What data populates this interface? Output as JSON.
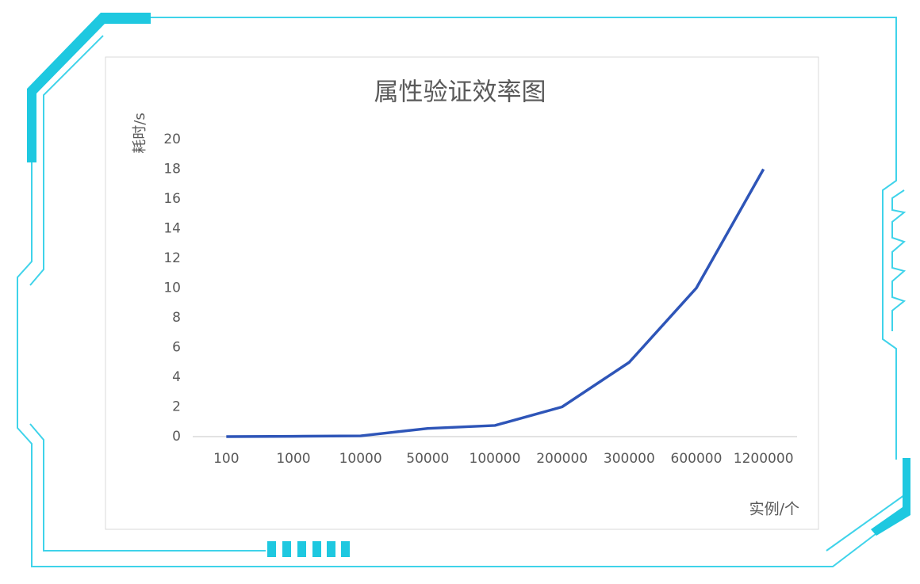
{
  "chart_data": {
    "type": "line",
    "title": "属性验证效率图",
    "y_label": "耗时/s",
    "x_label": "实例/个",
    "categories": [
      "100",
      "1000",
      "10000",
      "50000",
      "100000",
      "200000",
      "300000",
      "600000",
      "1200000"
    ],
    "values": [
      0,
      0.02,
      0.05,
      0.55,
      0.75,
      2,
      5,
      10,
      18
    ],
    "color": "#2e55b8",
    "ylim": [
      0,
      20
    ],
    "yticks": [
      0,
      2,
      4,
      6,
      8,
      10,
      12,
      14,
      16,
      18,
      20
    ],
    "grid": false
  }
}
